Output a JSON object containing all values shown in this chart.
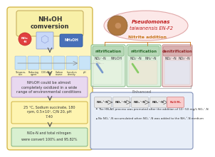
{
  "title_line1": "NH₄OH",
  "title_line2": "comversion",
  "bacteria_line1": "Pseudomonas",
  "bacteria_line2": "taiwanensis EN-F2",
  "nitrite_label": "Nitrite addition",
  "enhanced_label": "Enhanced",
  "left_box_bg": "#fdf5c0",
  "left_box_border": "#d4b84a",
  "left_inner_border": "#c8b060",
  "purple_box_bg": "#e8d8f0",
  "purple_box_border": "#b090c8",
  "yellow_box_bg": "#fef4b0",
  "yellow_box_border": "#c8a830",
  "green_box_bg": "#d8f0d0",
  "green_box_border": "#70a870",
  "bacteria_bg": "#fce8e8",
  "bacteria_border": "#e0a8a8",
  "nitri1_bg": "#dff0df",
  "nitri1_border": "#80b880",
  "nitri1_title_bg": "#b8d8b8",
  "nitri2_bg": "#dff0df",
  "nitri2_border": "#80b880",
  "nitri2_title_bg": "#b8d8b8",
  "deni_bg": "#f0dfdf",
  "deni_border": "#c08080",
  "deni_title_bg": "#d8b0b0",
  "bottom_bg": "#e8eef8",
  "bottom_border": "#8090b8",
  "n2o_bg": "#f8c8c8",
  "n2o_border": "#d08080",
  "arrow_color_orange": "#d08030",
  "text_dark": "#333333",
  "text_orange": "#c87820",
  "text_green": "#2a6a2a",
  "text_red": "#902828",
  "text_purple": "#6a3a8a",
  "nox_starburst_bg": "#e04040",
  "nh4oh_bg": "#4870b8",
  "left_text1": "NH₂OH could be almost",
  "left_text2": "completely oxidized in a wide",
  "left_text3": "range of environmental conditions",
  "cond1": "25 °C, Sodium succinate, 180",
  "cond2": "rpm, 0.5×10⁸, C/N 20, pH",
  "cond3": "7.40",
  "result1": "NOx-N and total nitrogen",
  "result2": "were convert 100% and 95.82%",
  "nitri1_col1": "NO₂⁻-N",
  "nitri1_col2": "NH₂OH",
  "nitri2_col1": "NO₂⁻-N",
  "nitri2_col2": "NH₄⁺-N",
  "deni_col1": "NO₂⁻-N",
  "deni_col2": "NO₃⁻-N",
  "path_nh4": "NH₄⁺-N",
  "path_no2": "NO₂⁻-N",
  "path_no3": "NO₃⁻-N",
  "path_nox": "NO₂⁻-N",
  "path_n2o": "N₂O/N₂",
  "bullet1": "The HN-AD process was promoted after the addition of 10~50 mg/L NO₂⁻-N",
  "bullet2": "No NO₂⁻-N accumulated when NO₂⁻-N was added to the NH₄⁺-N medium"
}
